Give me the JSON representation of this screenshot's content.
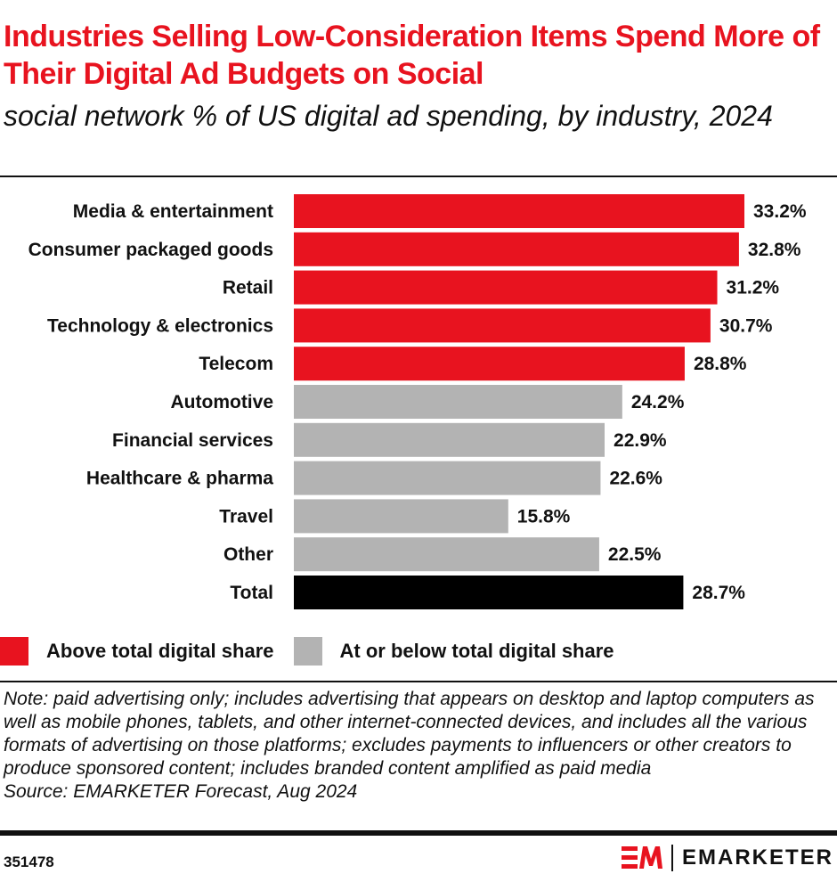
{
  "header": {
    "title": "Industries Selling Low-Consideration Items Spend More of Their Digital Ad Budgets on Social",
    "subtitle": "social network % of US digital ad spending, by industry, 2024"
  },
  "colors": {
    "above": "#e8131f",
    "below": "#b3b3b3",
    "total": "#000000"
  },
  "chart_data": {
    "type": "bar",
    "orientation": "horizontal",
    "title": "Industries Selling Low-Consideration Items Spend More of Their Digital Ad Budgets on Social",
    "subtitle": "social network % of US digital ad spending, by industry, 2024",
    "unit": "%",
    "grid": false,
    "legend_placement": "bottom-left",
    "categories": [
      "Media & entertainment",
      "Consumer packaged goods",
      "Retail",
      "Technology & electronics",
      "Telecom",
      "Automotive",
      "Financial services",
      "Healthcare & pharma",
      "Travel",
      "Other",
      "Total"
    ],
    "values": [
      33.2,
      32.8,
      31.2,
      30.7,
      28.8,
      24.2,
      22.9,
      22.6,
      15.8,
      22.5,
      28.7
    ],
    "labels": [
      "33.2%",
      "32.8%",
      "31.2%",
      "30.7%",
      "28.8%",
      "24.2%",
      "22.9%",
      "22.6%",
      "15.8%",
      "22.5%",
      "28.7%"
    ],
    "groups": [
      "above",
      "above",
      "above",
      "above",
      "above",
      "below",
      "below",
      "below",
      "below",
      "below",
      "total"
    ],
    "xlim": [
      0,
      33.2
    ]
  },
  "legend": {
    "above": "Above total digital share",
    "below": "At or below total digital share"
  },
  "footer": {
    "note": "Note: paid advertising only; includes advertising that appears on desktop and laptop computers as well as mobile phones, tablets, and other internet-connected devices, and includes all the various formats of advertising on those platforms; excludes payments to influencers or other creators to produce sponsored content; includes branded content amplified as paid media",
    "source": "Source: EMARKETER Forecast, Aug 2024",
    "id": "351478",
    "brand": "EMARKETER"
  }
}
